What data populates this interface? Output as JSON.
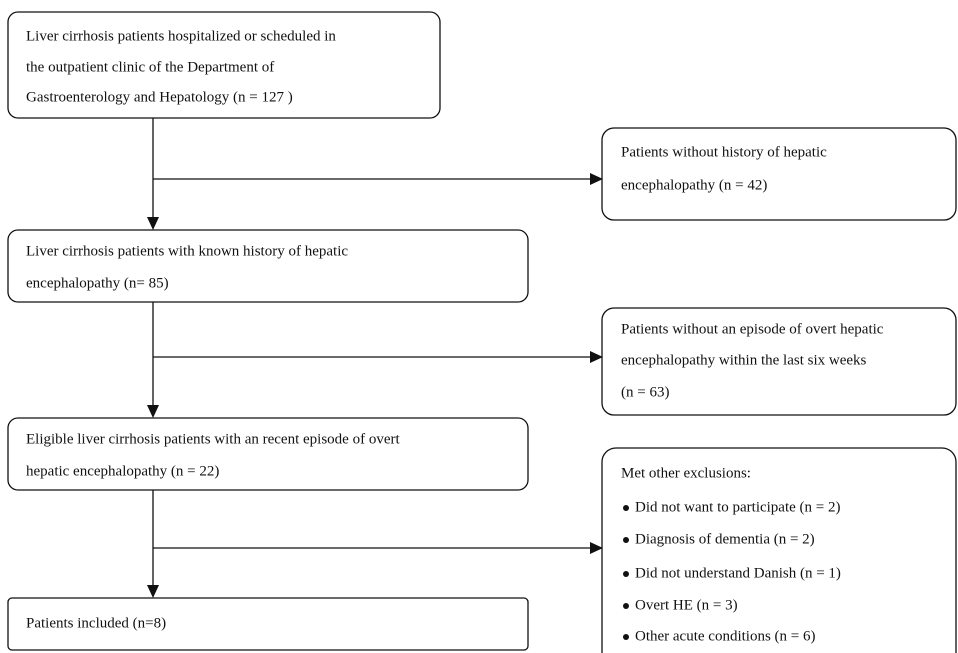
{
  "nodes": [
    {
      "lines": [
        "Liver cirrhosis patients hospitalized or scheduled in",
        "the outpatient clinic of the Department of",
        "Gastroenterology and Hepatology (n = 127 )"
      ]
    },
    {
      "lines": [
        "Liver cirrhosis patients with known history of hepatic",
        "encephalopathy (n= 85)"
      ]
    },
    {
      "lines": [
        "Eligible liver cirrhosis patients with an recent episode of overt",
        "hepatic encephalopathy (n = 22)"
      ]
    },
    {
      "lines": [
        "Patients included (n=8)"
      ]
    }
  ],
  "exclusions": [
    {
      "lines": [
        "Patients without history of hepatic",
        "encephalopathy (n = 42)"
      ]
    },
    {
      "lines": [
        "Patients without an episode of overt hepatic",
        "encephalopathy within the last six weeks",
        "(n = 63)"
      ]
    },
    {
      "title": "Met other exclusions:",
      "items": [
        "Did not want to participate (n = 2)",
        "Diagnosis of dementia (n = 2)",
        "Did not understand Danish (n = 1)",
        "Overt HE (n = 3)",
        "Other acute conditions (n = 6)"
      ]
    }
  ]
}
